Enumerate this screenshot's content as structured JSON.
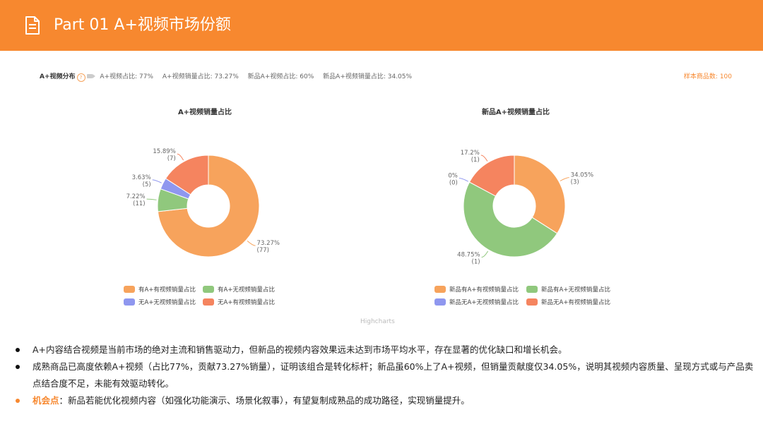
{
  "header": {
    "title": "Part 01  A+视频市场份额",
    "icon": "document-icon",
    "color": "#f7882f"
  },
  "stats": {
    "label": "A+视频分布",
    "items": [
      "A+视频占比: 77%",
      "A+视频销量占比: 73.27%",
      "新品A+视频占比: 60%",
      "新品A+视频销量占比: 34.05%"
    ],
    "sample": "样本商品数: 100"
  },
  "chart_data": [
    {
      "type": "pie",
      "title": "A+视频销量占比",
      "series": [
        {
          "name": "有A+有视频销量占比",
          "value": 73.27,
          "label": "73.27%",
          "count": "(77)",
          "color": "#f7a35c"
        },
        {
          "name": "有A+无视频销量占比",
          "value": 7.22,
          "label": "7.22%",
          "count": "(11)",
          "color": "#90c87d"
        },
        {
          "name": "无A+无视频销量占比",
          "value": 3.63,
          "label": "3.63%",
          "count": "(5)",
          "color": "#8f97ef"
        },
        {
          "name": "无A+有视频销量占比",
          "value": 15.89,
          "label": "15.89%",
          "count": "(7)",
          "color": "#f5845f"
        }
      ],
      "legend_placement": "bottom"
    },
    {
      "type": "pie",
      "title": "新品A+视频销量占比",
      "series": [
        {
          "name": "新品有A+有视频销量占比",
          "value": 34.05,
          "label": "34.05%",
          "count": "(3)",
          "color": "#f7a35c"
        },
        {
          "name": "新品有A+无视频销量占比",
          "value": 48.75,
          "label": "48.75%",
          "count": "(1)",
          "color": "#90c87d"
        },
        {
          "name": "新品无A+无视频销量占比",
          "value": 0,
          "label": "0%",
          "count": "(0)",
          "color": "#8f97ef"
        },
        {
          "name": "新品无A+有视频销量占比",
          "value": 17.2,
          "label": "17.2%",
          "count": "(1)",
          "color": "#f5845f"
        }
      ],
      "legend_placement": "bottom"
    }
  ],
  "credit": "Highcharts",
  "bullets": [
    {
      "text": "A+内容结合视频是当前市场的绝对主流和销售驱动力，但新品的视频内容效果远未达到市场平均水平，存在显著的优化缺口和增长机会。"
    },
    {
      "text": "成熟商品已高度依赖A+视频（占比77%，贡献73.27%销量），证明该组合是转化标杆；新品虽60%上了A+视频，但销量贡献度仅34.05%，说明其视频内容质量、呈现方式或与产品卖点结合度不足，未能有效驱动转化。"
    },
    {
      "highlight": "机会点",
      "text": "：新品若能优化视频内容（如强化功能演示、场景化叙事），有望复制成熟品的成功路径，实现销量提升。"
    }
  ]
}
